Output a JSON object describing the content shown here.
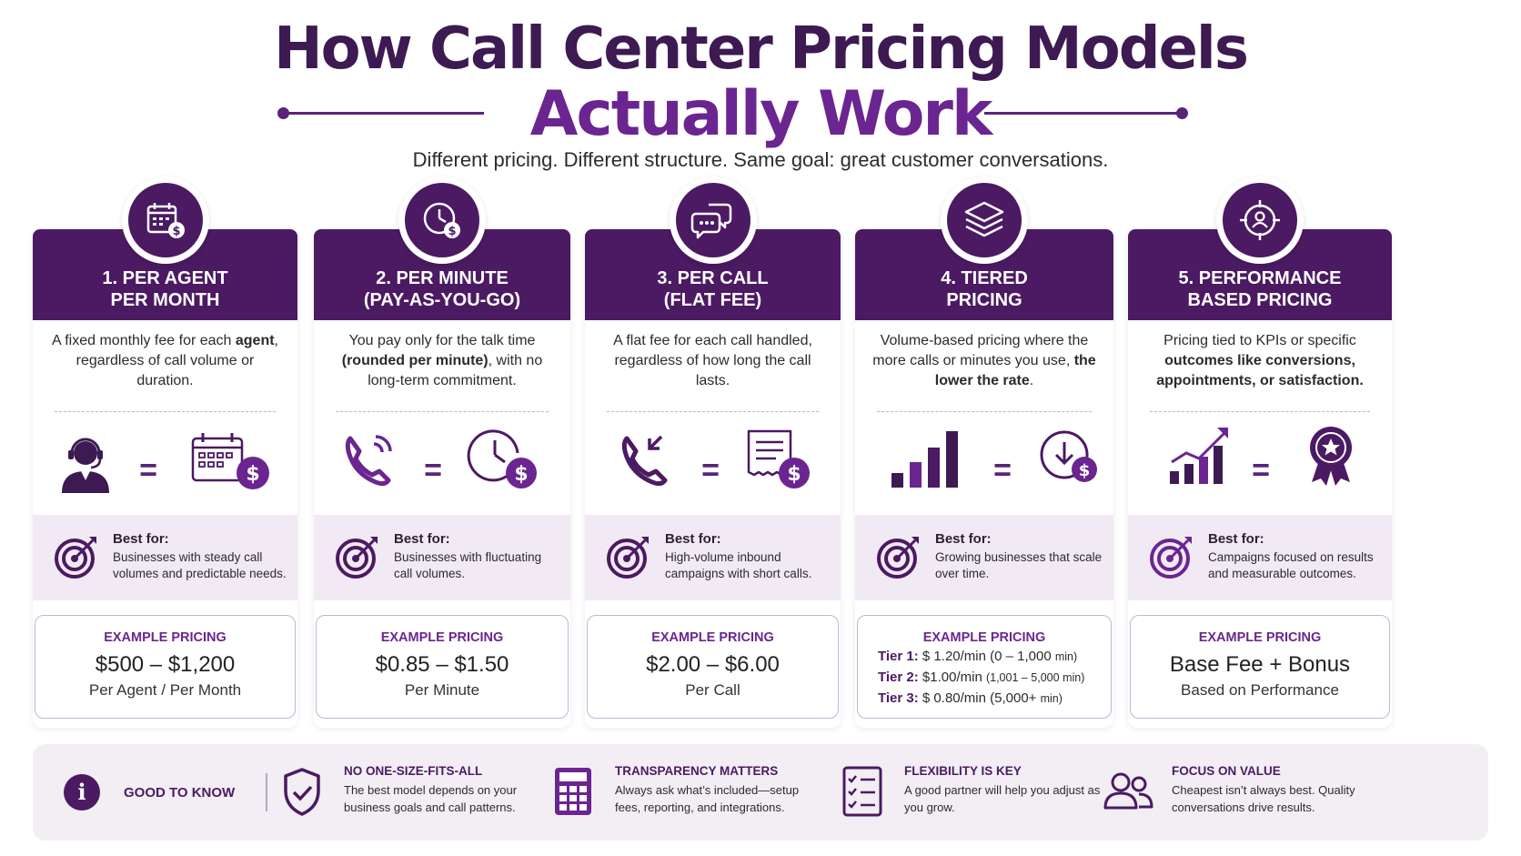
{
  "header": {
    "title_line1": "How Call Center Pricing Models",
    "title_line2": "Actually Work",
    "subtitle": "Different pricing. Different structure. Same goal: great customer conversations."
  },
  "colors": {
    "primary": "#4b1a62",
    "accent": "#6b2590",
    "panel": "#f1eaf4"
  },
  "cards": [
    {
      "title": "1. PER AGENT\nPER MONTH",
      "badge_icon": "calendar-dollar-icon",
      "desc_parts": [
        "A fixed monthly fee for each ",
        "agent",
        ", regardless of call volume or duration."
      ],
      "visual_left_icon": "agent-headset-icon",
      "visual_right_icon": "calendar-dollar-icon",
      "equals": "=",
      "best_label": "Best for:",
      "best_text": "Businesses with steady call volumes and predictable needs.",
      "example_label": "EXAMPLE PRICING",
      "example_price": "$500 – $1,200",
      "example_unit": "Per Agent / Per Month"
    },
    {
      "title": "2. PER MINUTE\n(PAY-AS-YOU-GO)",
      "badge_icon": "clock-dollar-icon",
      "desc_parts": [
        "You pay only for the talk time ",
        "(rounded per minute)",
        ", with no long-term commitment."
      ],
      "visual_left_icon": "phone-ringing-icon",
      "visual_right_icon": "clock-dollar-icon",
      "equals": "=",
      "best_label": "Best for:",
      "best_text": "Businesses with fluctuating call volumes.",
      "example_label": "EXAMPLE PRICING",
      "example_price": "$0.85 – $1.50",
      "example_unit": "Per Minute"
    },
    {
      "title": "3. PER CALL\n(FLAT FEE)",
      "badge_icon": "chat-bubbles-icon",
      "desc_parts": [
        "A flat fee for each call handled, regardless of how long the call lasts.",
        "",
        ""
      ],
      "visual_left_icon": "phone-incoming-icon",
      "visual_right_icon": "receipt-dollar-icon",
      "equals": "=",
      "best_label": "Best for:",
      "best_text": "High-volume inbound campaigns with short calls.",
      "example_label": "EXAMPLE PRICING",
      "example_price": "$2.00 – $6.00",
      "example_unit": "Per Call"
    },
    {
      "title": "4. TIERED\nPRICING",
      "badge_icon": "layers-icon",
      "desc_parts": [
        "Volume-based pricing where the more calls or minutes you use, ",
        "the lower the rate",
        "."
      ],
      "visual_left_icon": "bar-chart-icon",
      "visual_right_icon": "clock-download-dollar-icon",
      "equals": "=",
      "best_label": "Best for:",
      "best_text": "Growing businesses that scale over time.",
      "example_label": "EXAMPLE PRICING",
      "tiers": [
        {
          "name": "Tier 1:",
          "rate": "$ 1.20/min",
          "range": "(0 – 1,000 ",
          "unit": "min)"
        },
        {
          "name": "Tier 2:",
          "rate": "$1.00/min",
          "range": "(1,001 – 5,000 ",
          "unit": "min)"
        },
        {
          "name": "Tier 3:",
          "rate": "$ 0.80/min",
          "range": "(5,000+ ",
          "unit": "min)"
        }
      ]
    },
    {
      "title": "5. PERFORMANCE\nBASED PRICING",
      "badge_icon": "target-person-icon",
      "desc_parts": [
        "Pricing tied to KPIs or specific ",
        "outcomes like conversions, appointments, or satisfaction.",
        ""
      ],
      "visual_left_icon": "growth-chart-icon",
      "visual_right_icon": "award-ribbon-icon",
      "equals": "=",
      "best_label": "Best for:",
      "best_text": "Campaigns focused on results and measurable outcomes.",
      "example_label": "EXAMPLE PRICING",
      "example_price": "Base Fee + Bonus",
      "example_unit": "Based on Performance"
    }
  ],
  "footer": {
    "info_glyph": "i",
    "good_to_know": "GOOD TO KNOW",
    "items": [
      {
        "icon": "shield-check-icon",
        "title": "NO ONE-SIZE-FITS-ALL",
        "text": "The best model depends on your business goals and call patterns."
      },
      {
        "icon": "calculator-icon",
        "title": "TRANSPARENCY MATTERS",
        "text": "Always ask what’s included—setup fees, reporting, and integrations."
      },
      {
        "icon": "checklist-icon",
        "title": "FLEXIBILITY IS KEY",
        "text": "A good partner will help you adjust as you grow."
      },
      {
        "icon": "people-icon",
        "title": "FOCUS ON VALUE",
        "text": "Cheapest isn’t always best. Quality conversations drive results."
      }
    ]
  }
}
